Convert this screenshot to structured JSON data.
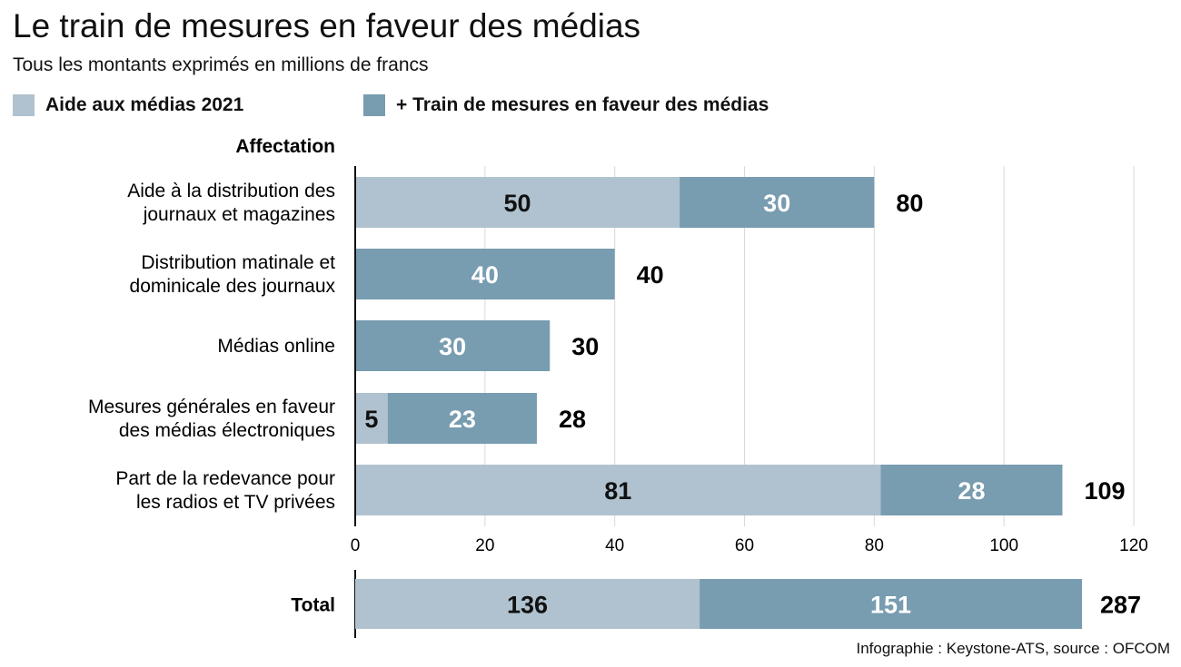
{
  "title": "Le train de mesures en faveur des médias",
  "subtitle": "Tous les montants exprimés en millions de francs",
  "source": "Infographie : Keystone-ATS, source : OFCOM",
  "colors": {
    "aide_2021": "#b0c2cf",
    "train": "#789cb0",
    "grid": "#d9d9d9",
    "axis": "#111111"
  },
  "chart_data": [
    {
      "type": "bar",
      "orientation": "horizontal",
      "stacked": true,
      "category_header": "Affectation",
      "categories": [
        [
          "Aide à la distribution des",
          "journaux et magazines"
        ],
        [
          "Distribution matinale et",
          "dominicale des journaux"
        ],
        [
          "Médias online"
        ],
        [
          "Mesures générales en faveur",
          "des médias électroniques"
        ],
        [
          "Part de la redevance pour",
          "les radios et TV privées"
        ]
      ],
      "series": [
        {
          "name": "Aide aux médias 2021",
          "values": [
            50,
            0,
            0,
            5,
            81
          ]
        },
        {
          "name": "+ Train de mesures en faveur des médias",
          "values": [
            30,
            40,
            30,
            23,
            28
          ]
        }
      ],
      "totals": [
        80,
        40,
        30,
        28,
        109
      ],
      "xlim": [
        0,
        120
      ],
      "xticks": [
        0,
        20,
        40,
        60,
        80,
        100,
        120
      ],
      "grid": true,
      "legend": "top-left"
    },
    {
      "type": "bar",
      "orientation": "horizontal",
      "stacked": true,
      "categories": [
        "Total"
      ],
      "series": [
        {
          "name": "Aide aux médias 2021",
          "values": [
            136
          ]
        },
        {
          "name": "+ Train de mesures en faveur des médias",
          "values": [
            151
          ]
        }
      ],
      "totals": [
        287
      ]
    }
  ]
}
